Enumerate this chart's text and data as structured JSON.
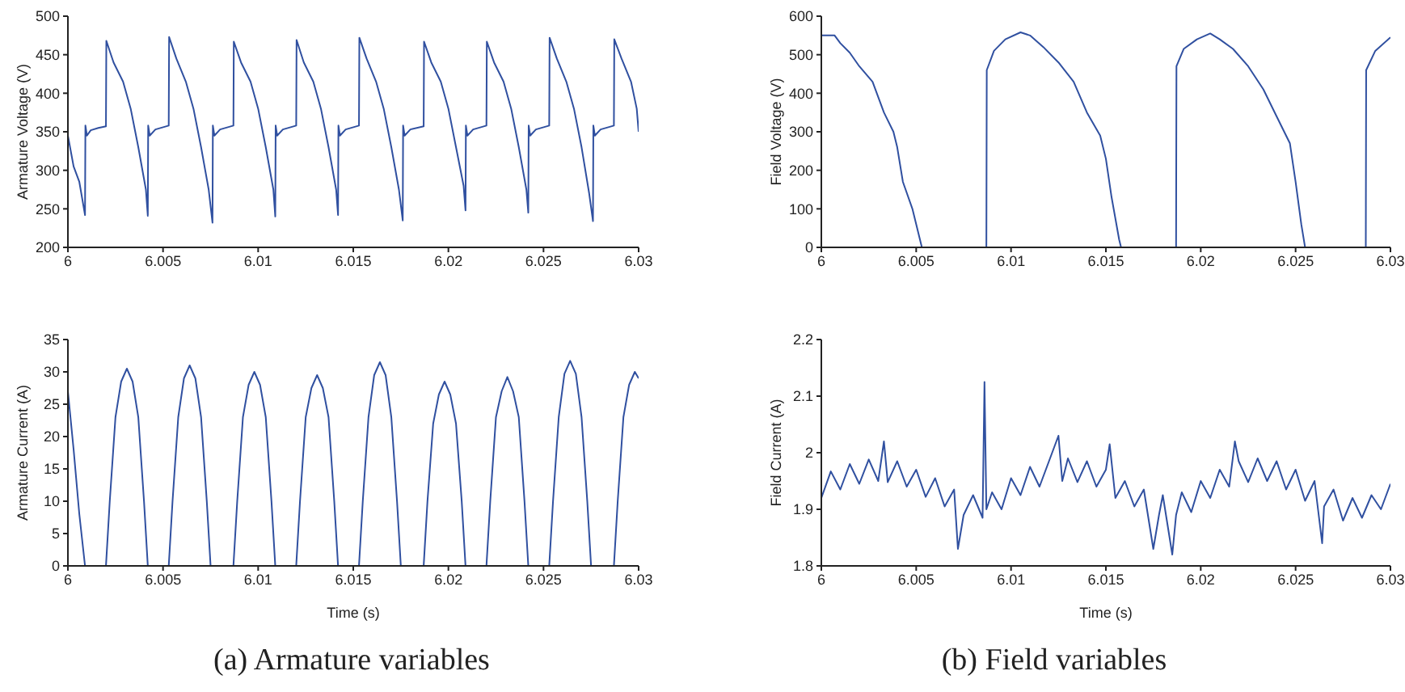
{
  "chart_data": [
    {
      "type": "line",
      "ylabel": "Armature Voltage (V)",
      "color": "#3050a0",
      "xlim": [
        6,
        6.03
      ],
      "xticks": [
        6,
        6.005,
        6.01,
        6.015,
        6.02,
        6.025,
        6.03
      ],
      "ylim": [
        200,
        500
      ],
      "yticks": [
        200,
        250,
        300,
        350,
        400,
        450,
        500
      ],
      "x": [
        6,
        6.0003,
        6.0006,
        6.0009,
        6.00092,
        6.001,
        6.0012,
        6.0016,
        6.002,
        6.00202,
        6.0024,
        6.0029,
        6.0033,
        6.0037,
        6.0041,
        6.0042,
        6.00422,
        6.0043,
        6.0046,
        6.0053,
        6.00532,
        6.0057,
        6.0062,
        6.0066,
        6.007,
        6.0074,
        6.0076,
        6.00762,
        6.0077,
        6.008,
        6.0087,
        6.00872,
        6.0091,
        6.0096,
        6.01,
        6.0104,
        6.0108,
        6.0109,
        6.01092,
        6.011,
        6.0113,
        6.012,
        6.01202,
        6.0124,
        6.0129,
        6.0133,
        6.0137,
        6.0141,
        6.0142,
        6.01422,
        6.0143,
        6.0146,
        6.0153,
        6.01532,
        6.0157,
        6.0162,
        6.0166,
        6.017,
        6.0174,
        6.0176,
        6.01762,
        6.0177,
        6.018,
        6.0187,
        6.01872,
        6.0191,
        6.0196,
        6.02,
        6.0204,
        6.0208,
        6.0209,
        6.02092,
        6.021,
        6.0213,
        6.022,
        6.02202,
        6.0224,
        6.0229,
        6.0233,
        6.0237,
        6.0241,
        6.0242,
        6.02422,
        6.0243,
        6.0246,
        6.0253,
        6.02532,
        6.0257,
        6.0262,
        6.0266,
        6.027,
        6.0274,
        6.0276,
        6.02762,
        6.0277,
        6.028,
        6.0287,
        6.02872,
        6.0291,
        6.0296,
        6.0299,
        6.03
      ],
      "values": [
        345,
        305,
        285,
        242,
        358,
        345,
        352,
        355,
        357,
        468,
        440,
        415,
        380,
        330,
        275,
        241,
        358,
        345,
        353,
        358,
        473,
        445,
        415,
        380,
        330,
        275,
        232,
        358,
        345,
        353,
        358,
        467,
        440,
        415,
        380,
        330,
        275,
        240,
        358,
        345,
        353,
        358,
        469,
        440,
        415,
        380,
        330,
        275,
        242,
        358,
        345,
        353,
        358,
        472,
        445,
        415,
        380,
        330,
        275,
        235,
        358,
        345,
        353,
        357,
        467,
        440,
        415,
        380,
        330,
        280,
        248,
        358,
        345,
        353,
        358,
        467,
        440,
        415,
        380,
        330,
        275,
        245,
        358,
        345,
        353,
        358,
        472,
        445,
        415,
        380,
        330,
        270,
        234,
        358,
        345,
        353,
        358,
        470,
        445,
        415,
        380,
        350
      ]
    },
    {
      "type": "line",
      "ylabel": "Field Voltage (V)",
      "color": "#3050a0",
      "xlim": [
        6,
        6.03
      ],
      "xticks": [
        6,
        6.005,
        6.01,
        6.015,
        6.02,
        6.025,
        6.03
      ],
      "ylim": [
        0,
        600
      ],
      "yticks": [
        0,
        100,
        200,
        300,
        400,
        500,
        600
      ],
      "x": [
        6,
        6.0007,
        6.001,
        6.0015,
        6.002,
        6.0027,
        6.0033,
        6.0038,
        6.004,
        6.0043,
        6.0048,
        6.0053,
        6.0087,
        6.00872,
        6.0091,
        6.0097,
        6.0105,
        6.011,
        6.0117,
        6.0125,
        6.0133,
        6.014,
        6.0147,
        6.015,
        6.0153,
        6.0157,
        6.0158,
        6.0187,
        6.01872,
        6.0191,
        6.0198,
        6.0205,
        6.021,
        6.0217,
        6.0225,
        6.0233,
        6.024,
        6.0247,
        6.025,
        6.0253,
        6.0255,
        6.0287,
        6.02872,
        6.0292,
        6.03
      ],
      "values": [
        550,
        550,
        530,
        505,
        470,
        430,
        350,
        300,
        260,
        170,
        100,
        0,
        0,
        460,
        510,
        540,
        558,
        550,
        520,
        480,
        430,
        350,
        290,
        230,
        130,
        20,
        0,
        0,
        470,
        515,
        540,
        555,
        540,
        515,
        470,
        410,
        340,
        270,
        170,
        60,
        0,
        0,
        460,
        510,
        545
      ]
    },
    {
      "type": "line",
      "xlabel": "Time (s)",
      "ylabel": "Armature Current (A)",
      "color": "#3050a0",
      "xlim": [
        6,
        6.03
      ],
      "xticks": [
        6,
        6.005,
        6.01,
        6.015,
        6.02,
        6.025,
        6.03
      ],
      "ylim": [
        0,
        35
      ],
      "yticks": [
        0,
        5,
        10,
        15,
        20,
        25,
        30,
        35
      ],
      "annotations": [
        "(a) Armature variables"
      ],
      "x": [
        6,
        6.0003,
        6.0006,
        6.0009,
        6.002,
        6.0022,
        6.0025,
        6.0028,
        6.0031,
        6.0034,
        6.0037,
        6.004,
        6.0042,
        6.0053,
        6.0055,
        6.0058,
        6.0061,
        6.0064,
        6.0067,
        6.007,
        6.0073,
        6.0075,
        6.0087,
        6.0089,
        6.0092,
        6.0095,
        6.0098,
        6.0101,
        6.0104,
        6.0107,
        6.0109,
        6.012,
        6.0122,
        6.0125,
        6.0128,
        6.0131,
        6.0134,
        6.0137,
        6.014,
        6.0142,
        6.0153,
        6.0155,
        6.0158,
        6.0161,
        6.0164,
        6.0167,
        6.017,
        6.0173,
        6.0175,
        6.0187,
        6.0189,
        6.0192,
        6.0195,
        6.0198,
        6.0201,
        6.0204,
        6.0207,
        6.0209,
        6.022,
        6.0222,
        6.0225,
        6.0228,
        6.0231,
        6.0234,
        6.0237,
        6.024,
        6.0242,
        6.0253,
        6.0255,
        6.0258,
        6.0261,
        6.0264,
        6.0267,
        6.027,
        6.0273,
        6.0275,
        6.0287,
        6.0289,
        6.0292,
        6.0295,
        6.0298,
        6.03
      ],
      "values": [
        27,
        18,
        8,
        0,
        0,
        10,
        23,
        28.5,
        30.5,
        28.5,
        23,
        10,
        0,
        0,
        10,
        23,
        29,
        31,
        29,
        23,
        10,
        0,
        0,
        10,
        23,
        28,
        30,
        28,
        23,
        10,
        0,
        0,
        10,
        23,
        27.5,
        29.5,
        27.5,
        23,
        10,
        0,
        0,
        10,
        23,
        29.5,
        31.5,
        29.5,
        23,
        10,
        0,
        0,
        10,
        22,
        26.5,
        28.5,
        26.5,
        22,
        10,
        0,
        0,
        10,
        23,
        27,
        29.2,
        27,
        23,
        10,
        0,
        0,
        10,
        23,
        29.7,
        31.7,
        29.7,
        23,
        10,
        0,
        0,
        10,
        23,
        28,
        30,
        29
      ]
    },
    {
      "type": "line",
      "xlabel": "Time (s)",
      "ylabel": "Field Current (A)",
      "color": "#3050a0",
      "xlim": [
        6,
        6.03
      ],
      "xticks": [
        6,
        6.005,
        6.01,
        6.015,
        6.02,
        6.025,
        6.03
      ],
      "ylim": [
        1.8,
        2.2
      ],
      "yticks": [
        1.8,
        1.9,
        2,
        2.1,
        2.2
      ],
      "annotations": [
        "(b) Field variables"
      ],
      "x": [
        6,
        6.0005,
        6.001,
        6.0015,
        6.002,
        6.0025,
        6.003,
        6.0033,
        6.0035,
        6.004,
        6.0045,
        6.005,
        6.0055,
        6.006,
        6.0065,
        6.007,
        6.0072,
        6.0075,
        6.008,
        6.0085,
        6.0086,
        6.0087,
        6.009,
        6.0095,
        6.01,
        6.0105,
        6.011,
        6.0115,
        6.012,
        6.0125,
        6.0127,
        6.013,
        6.0135,
        6.014,
        6.0145,
        6.015,
        6.0152,
        6.0155,
        6.016,
        6.0165,
        6.017,
        6.0175,
        6.0178,
        6.018,
        6.0185,
        6.0187,
        6.019,
        6.0195,
        6.02,
        6.0205,
        6.021,
        6.0215,
        6.0218,
        6.022,
        6.0225,
        6.023,
        6.0235,
        6.024,
        6.0245,
        6.025,
        6.0255,
        6.026,
        6.0264,
        6.0265,
        6.027,
        6.0275,
        6.028,
        6.0285,
        6.029,
        6.0295,
        6.03
      ],
      "values": [
        1.92,
        1.967,
        1.935,
        1.98,
        1.945,
        1.988,
        1.95,
        2.02,
        1.948,
        1.985,
        1.94,
        1.97,
        1.922,
        1.955,
        1.905,
        1.935,
        1.83,
        1.89,
        1.925,
        1.885,
        2.125,
        1.9,
        1.93,
        1.9,
        1.955,
        1.925,
        1.975,
        1.94,
        1.985,
        2.03,
        1.95,
        1.99,
        1.948,
        1.985,
        1.94,
        1.97,
        2.015,
        1.92,
        1.95,
        1.905,
        1.935,
        1.83,
        1.89,
        1.925,
        1.82,
        1.89,
        1.93,
        1.895,
        1.95,
        1.92,
        1.97,
        1.94,
        2.02,
        1.985,
        1.948,
        1.99,
        1.95,
        1.985,
        1.935,
        1.97,
        1.915,
        1.95,
        1.84,
        1.905,
        1.935,
        1.88,
        1.92,
        1.885,
        1.925,
        1.9,
        1.945
      ]
    }
  ]
}
